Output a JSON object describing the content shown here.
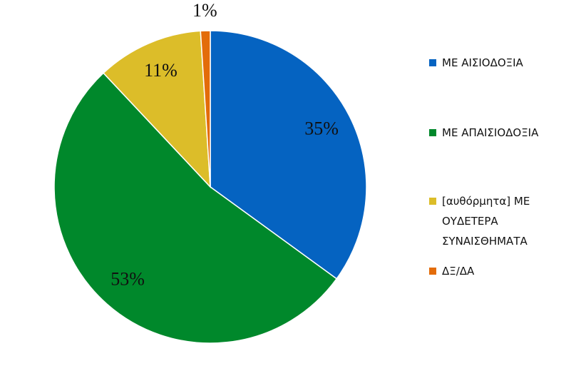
{
  "chart_data": {
    "type": "pie",
    "categories": [
      "ΜΕ ΑΙΣΙΟΔΟΞΙΑ",
      "ΜΕ ΑΠΑΙΣΙΟΔΟΞΙΑ",
      "[αυθόρμητα] ΜΕ ΟΥΔΕΤΕΡΑ ΣΥΝΑΙΣΘΗΜΑΤΑ",
      "ΔΞ/ΔΑ"
    ],
    "values": [
      35,
      53,
      11,
      1
    ],
    "value_labels": [
      "35%",
      "53%",
      "11%",
      "1%"
    ],
    "colors": [
      "#0563c1",
      "#00882b",
      "#dcbd29",
      "#e36c0a"
    ],
    "legend": "right"
  }
}
